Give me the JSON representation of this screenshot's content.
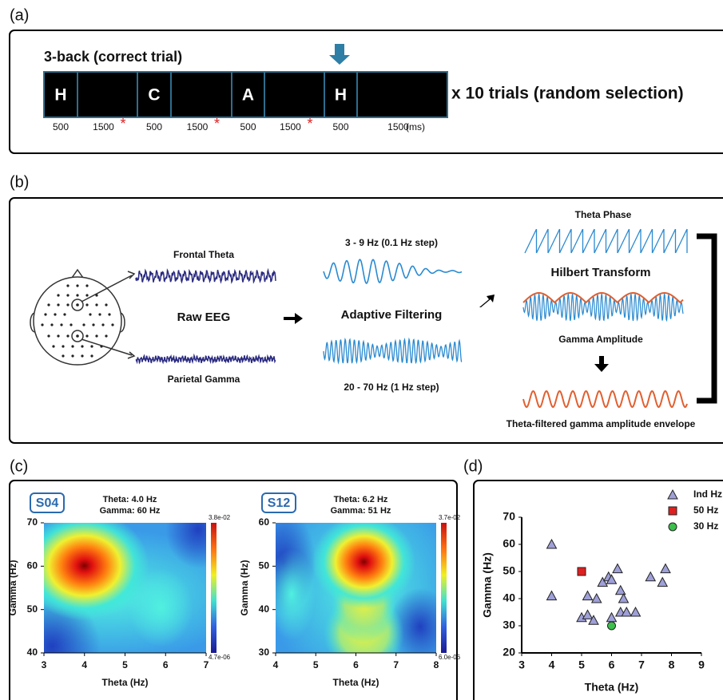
{
  "panel_a": {
    "label": "(a)",
    "title": "3-back (correct trial)",
    "letters": [
      "H",
      null,
      "C",
      null,
      "A",
      null,
      "H",
      null
    ],
    "timings": [
      500,
      1500,
      500,
      1500,
      500,
      1500,
      500,
      1500
    ],
    "marker": "*",
    "unit": "(ms)",
    "note": "x 10 trials (random selection)"
  },
  "panel_b": {
    "label": "(b)",
    "frontal": "Frontal Theta",
    "raw": "Raw EEG",
    "parietal": "Parietal Gamma",
    "theta_band": "3 - 9  Hz (0.1 Hz step)",
    "filtering": "Adaptive Filtering",
    "gamma_band": "20 - 70 Hz (1 Hz step)",
    "phase": "Theta Phase",
    "hilbert": "Hilbert Transform",
    "amplitude": "Gamma Amplitude",
    "envelope": "Theta-filtered gamma amplitude envelope"
  },
  "panel_c": {
    "label": "(c)"
  },
  "panel_d": {
    "label": "(d)"
  },
  "chart_data": [
    {
      "type": "heatmap",
      "subject": "S04",
      "annotation": [
        "Theta: 4.0 Hz",
        "Gamma: 60 Hz"
      ],
      "xlabel": "Theta (Hz)",
      "ylabel": "Gamma (Hz)",
      "xlim": [
        3,
        7
      ],
      "ylim": [
        40,
        70
      ],
      "xticks": [
        3,
        4,
        5,
        6,
        7
      ],
      "yticks": [
        40,
        50,
        60,
        70
      ],
      "colorbar_labels": [
        "3.8e-02",
        "4.7e-06"
      ]
    },
    {
      "type": "heatmap",
      "subject": "S12",
      "annotation": [
        "Theta: 6.2 Hz",
        "Gamma: 51 Hz"
      ],
      "xlabel": "Theta (Hz)",
      "ylabel": "Gamma (Hz)",
      "xlim": [
        4,
        8
      ],
      "ylim": [
        30,
        60
      ],
      "xticks": [
        4,
        5,
        6,
        7,
        8
      ],
      "yticks": [
        30,
        40,
        50,
        60
      ],
      "colorbar_labels": [
        "3.7e-02",
        "6.0e-06"
      ]
    },
    {
      "type": "scatter",
      "xlabel": "Theta (Hz)",
      "ylabel": "Gamma (Hz)",
      "xlim": [
        3,
        9
      ],
      "ylim": [
        20,
        70
      ],
      "xticks": [
        3,
        4,
        5,
        6,
        7,
        8,
        9
      ],
      "yticks": [
        20,
        30,
        40,
        50,
        60,
        70
      ],
      "series": [
        {
          "name": "Ind Hz",
          "color": "#9fa0d8",
          "marker": "triangle",
          "x": [
            4,
            4,
            5,
            5.2,
            5.2,
            5.4,
            5.5,
            5.7,
            5.9,
            6,
            6,
            6.2,
            6.3,
            6.3,
            6.4,
            6.5,
            6.8,
            7.3,
            7.7,
            7.8
          ],
          "values": [
            60,
            41,
            33,
            41,
            34,
            32,
            40,
            46,
            48,
            47,
            33,
            51,
            43,
            35,
            40,
            35,
            35,
            48,
            46,
            51
          ]
        },
        {
          "name": "50 Hz",
          "color": "#e02020",
          "marker": "square",
          "x": [
            5
          ],
          "values": [
            50
          ]
        },
        {
          "name": "30 Hz",
          "color": "#3cbf4c",
          "marker": "circle",
          "x": [
            6
          ],
          "values": [
            30
          ]
        }
      ]
    }
  ]
}
